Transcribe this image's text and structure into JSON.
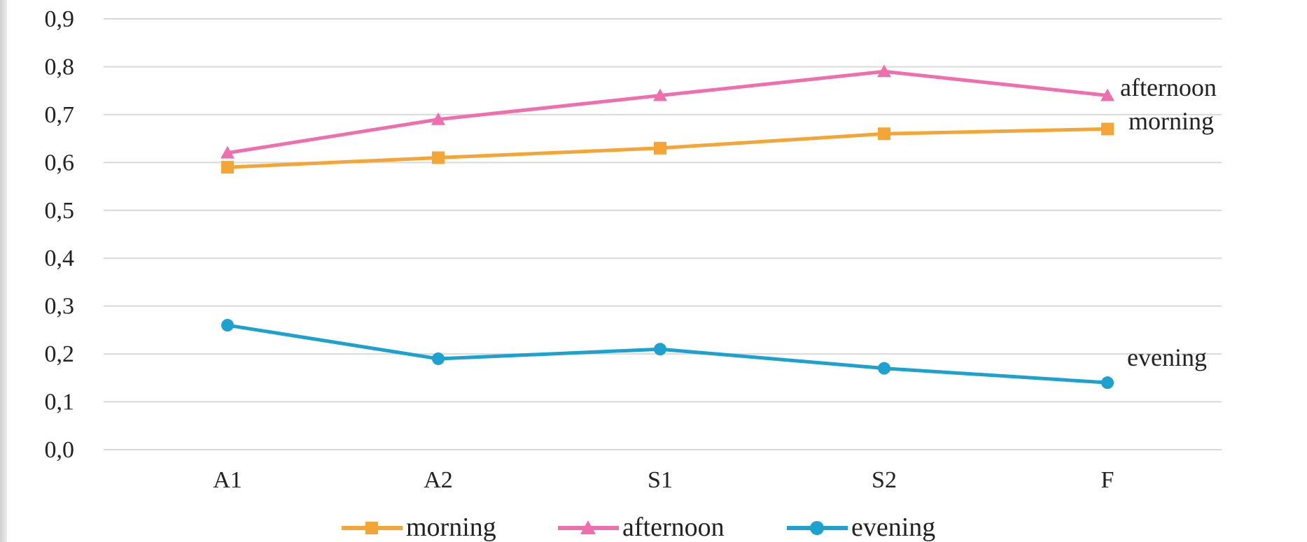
{
  "chart_data": {
    "type": "line",
    "title": "",
    "xlabel": "",
    "ylabel": "",
    "categories": [
      "A1",
      "A2",
      "S1",
      "S2",
      "F"
    ],
    "ylim": [
      0,
      0.9
    ],
    "y_ticks": [
      0.0,
      0.1,
      0.2,
      0.3,
      0.4,
      0.5,
      0.6,
      0.7,
      0.8,
      0.9
    ],
    "y_tick_labels": [
      "0,0",
      "0,1",
      "0,2",
      "0,3",
      "0,4",
      "0,5",
      "0,6",
      "0,7",
      "0,8",
      "0,9"
    ],
    "grid": "horizontal",
    "legend_position": "bottom",
    "series": [
      {
        "name": "morning",
        "values": [
          0.59,
          0.61,
          0.63,
          0.66,
          0.67
        ],
        "color": "#f5a535",
        "marker": "square"
      },
      {
        "name": "afternoon",
        "values": [
          0.62,
          0.69,
          0.74,
          0.79,
          0.74
        ],
        "color": "#ef6fae",
        "marker": "triangle"
      },
      {
        "name": "evening",
        "values": [
          0.26,
          0.19,
          0.21,
          0.17,
          0.14
        ],
        "color": "#1da1cf",
        "marker": "circle"
      }
    ],
    "end_labels": [
      "afternoon",
      "morning",
      "evening"
    ]
  }
}
